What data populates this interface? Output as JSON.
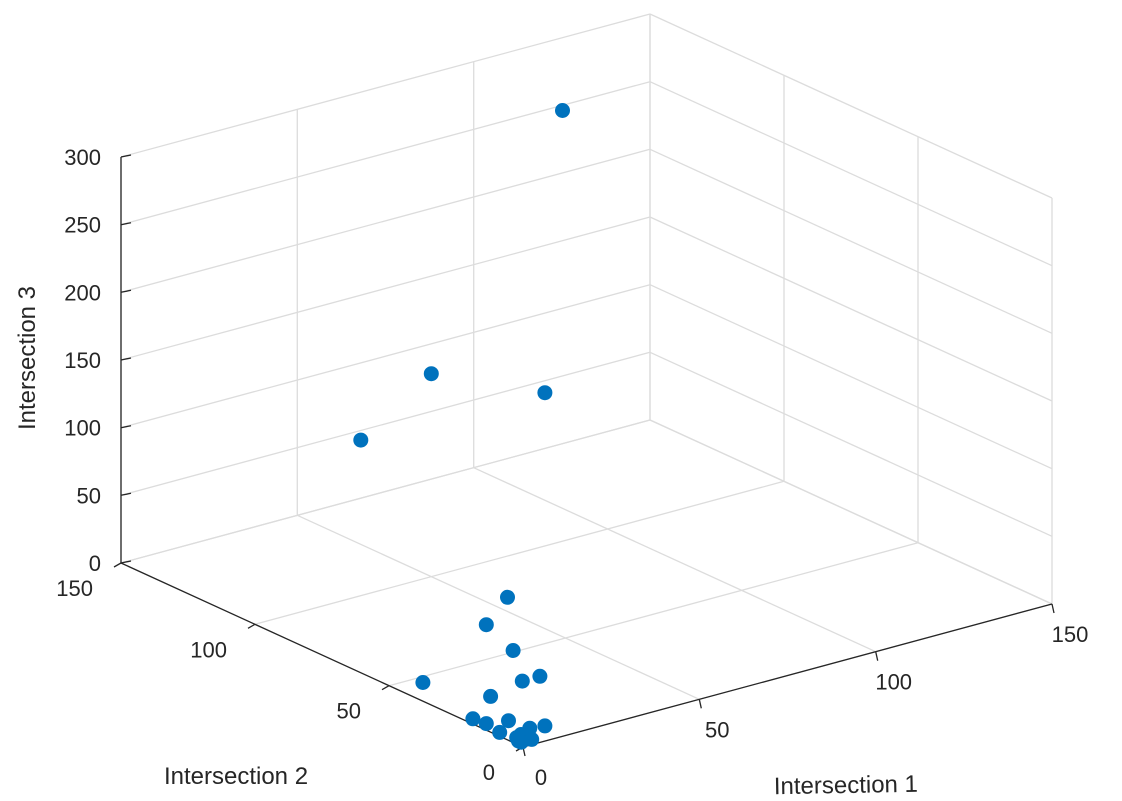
{
  "chart_data": {
    "type": "scatter",
    "xlabel": "Intersection 1",
    "ylabel": "Intersection 2",
    "zlabel": "Intersection 3",
    "xlim": [
      0,
      150
    ],
    "ylim": [
      0,
      150
    ],
    "zlim": [
      0,
      300
    ],
    "xticks": [
      0,
      50,
      100,
      150
    ],
    "yticks": [
      0,
      50,
      100,
      150
    ],
    "zticks": [
      0,
      50,
      100,
      150,
      200,
      250,
      300
    ],
    "grid": true,
    "marker_color": "#0072BD",
    "points": [
      {
        "x": 110,
        "y": 130,
        "z": 275
      },
      {
        "x": 30,
        "y": 100,
        "z": 115
      },
      {
        "x": 50,
        "y": 100,
        "z": 150
      },
      {
        "x": 45,
        "y": 65,
        "z": 20
      },
      {
        "x": 105,
        "y": 130,
        "z": 70
      },
      {
        "x": 20,
        "y": 40,
        "z": 40
      },
      {
        "x": 20,
        "y": 30,
        "z": 30
      },
      {
        "x": 15,
        "y": 20,
        "z": 20
      },
      {
        "x": 20,
        "y": 20,
        "z": 20
      },
      {
        "x": 6,
        "y": 20,
        "z": 15
      },
      {
        "x": 2,
        "y": 40,
        "z": 10
      },
      {
        "x": 5,
        "y": 12,
        "z": 5
      },
      {
        "x": 1,
        "y": 20,
        "z": 2
      },
      {
        "x": 1,
        "y": 15,
        "z": 3
      },
      {
        "x": 10,
        "y": 5,
        "z": 4
      },
      {
        "x": 1,
        "y": 10,
        "z": 1
      },
      {
        "x": 8,
        "y": 8,
        "z": 1
      },
      {
        "x": 2,
        "y": 5,
        "z": 1
      },
      {
        "x": 4,
        "y": 6,
        "z": 1
      },
      {
        "x": 1,
        "y": 3,
        "z": 1
      },
      {
        "x": 4,
        "y": 2,
        "z": 1
      },
      {
        "x": 1,
        "y": 2,
        "z": 1
      }
    ]
  }
}
